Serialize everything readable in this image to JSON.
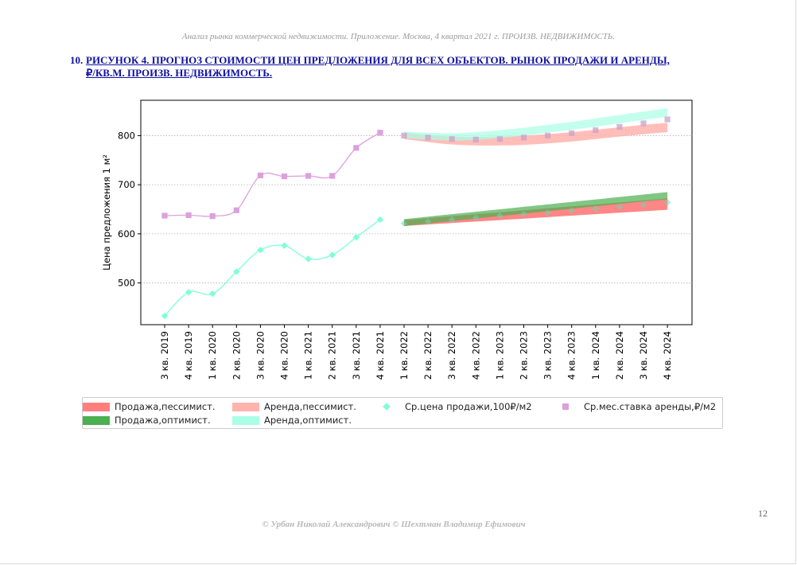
{
  "header": {
    "text": "Анализ рынка коммерческой недвижимости. Приложение.  Москва,  4 квартал 2021 г.  ПРОИЗВ. НЕДВИЖИМОСТЬ."
  },
  "figure": {
    "number": "10.",
    "title_line1": "РИСУНОК 4. ПРОГНОЗ СТОИМОСТИ ЦЕН ПРЕДЛОЖЕНИЯ ДЛЯ ВСЕХ ОБЪЕКТОВ. РЫНОК ПРОДАЖИ И АРЕНДЫ,",
    "title_line2": "₽/КВ.М. ПРОИЗВ. НЕДВИЖИМОСТЬ."
  },
  "colors": {
    "sale_pess": "#ff7f7f",
    "sale_opt": "#4caf50",
    "rent_pess": "#ffb3ad",
    "rent_opt": "#aaffe6",
    "sale_marker": "#7fffd4",
    "rent_marker": "#dda0dd",
    "overlap_dark": "#5a6a2a"
  },
  "chart_data": {
    "type": "line",
    "ylabel": "Цена предложения 1 м²",
    "ylim": [
      415,
      872
    ],
    "yticks": [
      500,
      600,
      700,
      800
    ],
    "grid": "horizontal dotted",
    "categories": [
      "3 кв. 2019",
      "4 кв. 2019",
      "1 кв. 2020",
      "2 кв. 2020",
      "3 кв. 2020",
      "4 кв. 2020",
      "1 кв. 2021",
      "2 кв. 2021",
      "3 кв. 2021",
      "4 кв. 2021",
      "1 кв. 2022",
      "2 кв. 2022",
      "3 кв. 2022",
      "4 кв. 2022",
      "1 кв. 2023",
      "2 кв. 2023",
      "3 кв. 2023",
      "4 кв. 2023",
      "1 кв. 2024",
      "2 кв. 2024",
      "3 кв. 2024",
      "4 кв. 2024"
    ],
    "series": [
      {
        "name": "Ср.цена продажи,100₽/м2",
        "kind": "markers",
        "marker": "diamond",
        "values": [
          433,
          481,
          478,
          523,
          567,
          576,
          549,
          557,
          593,
          629,
          621,
          625,
          629,
          633,
          637,
          640,
          643,
          647,
          651,
          655,
          659,
          664
        ]
      },
      {
        "name": "Ср.мес.ставка аренды,₽/м2",
        "kind": "markers",
        "marker": "square",
        "values": [
          637,
          638,
          636,
          648,
          719,
          717,
          718,
          718,
          775,
          806,
          800,
          796,
          793,
          792,
          793,
          796,
          800,
          805,
          811,
          818,
          825,
          833
        ]
      },
      {
        "name": "Продажа,пессимист.",
        "kind": "band",
        "lower": [
          616,
          619,
          622,
          625,
          628,
          631,
          634,
          637,
          640,
          643,
          646,
          649
        ],
        "upper": [
          628,
          632,
          636,
          640,
          644,
          648,
          652,
          656,
          660,
          664,
          668,
          672
        ],
        "start_index": 10
      },
      {
        "name": "Продажа,оптимист.",
        "kind": "band",
        "lower": [
          616,
          621,
          626,
          631,
          636,
          641,
          646,
          651,
          656,
          661,
          666,
          670
        ],
        "upper": [
          630,
          635,
          640,
          645,
          650,
          655,
          660,
          665,
          670,
          675,
          680,
          685
        ],
        "start_index": 10
      },
      {
        "name": "Аренда,пессимист.",
        "kind": "band",
        "lower": [
          793,
          787,
          782,
          780,
          780,
          781,
          784,
          788,
          793,
          798,
          803,
          807
        ],
        "upper": [
          807,
          801,
          798,
          797,
          798,
          800,
          803,
          807,
          812,
          817,
          822,
          826
        ],
        "start_index": 10
      },
      {
        "name": "Аренда,оптимист.",
        "kind": "band",
        "lower": [
          795,
          792,
          790,
          791,
          795,
          800,
          806,
          812,
          818,
          825,
          832,
          838
        ],
        "upper": [
          808,
          806,
          805,
          807,
          811,
          816,
          822,
          828,
          835,
          842,
          849,
          856
        ],
        "start_index": 10
      }
    ],
    "legend": {
      "placement": "bottom",
      "items": [
        {
          "label": "Продажа,пессимист.",
          "kind": "band",
          "color": "#ff7f7f"
        },
        {
          "label": "Продажа,оптимист.",
          "kind": "band",
          "color": "#4caf50"
        },
        {
          "label": "Аренда,пессимист.",
          "kind": "band",
          "color": "#ffb3ad"
        },
        {
          "label": "Аренда,оптимист.",
          "kind": "band",
          "color": "#aaffe6"
        },
        {
          "label": "Ср.цена продажи,100₽/м2",
          "kind": "marker",
          "marker": "diamond",
          "color": "#7fffd4"
        },
        {
          "label": "Ср.мес.ставка аренды,₽/м2",
          "kind": "marker",
          "marker": "square",
          "color": "#dda0dd"
        }
      ]
    }
  },
  "page_number": "12",
  "footer": {
    "text": "© Урбан Николай Александрович   © Шехтман Владимир Ефимович"
  }
}
